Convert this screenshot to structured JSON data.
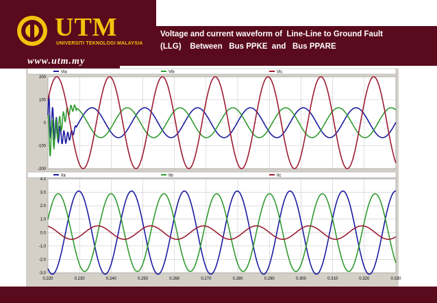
{
  "header": {
    "brand": "UTM",
    "brand_subtitle": "UNIVERSITI TEKNOLOGI MALAYSIA",
    "url": "www.utm.my",
    "title_line1": "Voltage and current waveform of  Line-Line to Ground Fault",
    "title_line2": "(LLG)    Between   Bus PPKE  and   Bus PPARE"
  },
  "colors": {
    "maroon": "#5a0a1d",
    "gold": "#f2c30d",
    "phase_a": "#1a1aa0",
    "phase_b": "#2f9a2f",
    "phase_c": "#9b1b30"
  },
  "chart_data": [
    {
      "type": "line",
      "legend": [
        "Vla",
        "Vlb",
        "Vlc"
      ],
      "legend_position": "top",
      "grid": true,
      "ylim": [
        -200,
        200
      ],
      "yticks": [
        "200",
        "100",
        "0",
        "-100",
        "-200"
      ],
      "xlim": [
        0.22,
        0.33
      ],
      "series": [
        {
          "name": "Vla",
          "amplitude": 65,
          "period": 0.0167,
          "phase_deg": 150,
          "fault_disturbance": true
        },
        {
          "name": "Vlb",
          "amplitude": 65,
          "period": 0.0167,
          "phase_deg": 270,
          "fault_disturbance": true
        },
        {
          "name": "Vlc",
          "amplitude": 200,
          "period": 0.0167,
          "phase_deg": 30,
          "fault_disturbance": false
        }
      ]
    },
    {
      "type": "line",
      "legend": [
        "IIa",
        "IIb",
        "IIc"
      ],
      "legend_position": "top",
      "grid": true,
      "ylim": [
        -3.0,
        4.0
      ],
      "yticks": [
        "4.0",
        "3.0",
        "2.0",
        "1.0",
        "0.0",
        "-1.0",
        "-2.0",
        "-3.0"
      ],
      "xlim": [
        0.22,
        0.33
      ],
      "xticks": [
        "0.220",
        "0.230",
        "0.240",
        "0.250",
        "0.260",
        "0.270",
        "0.280",
        "0.290",
        "0.300",
        "0.310",
        "0.320",
        "0.330"
      ],
      "series": [
        {
          "name": "IIa",
          "amplitude": 3.1,
          "period": 0.0167,
          "phase_deg": 240
        },
        {
          "name": "IIb",
          "amplitude": 2.9,
          "period": 0.0167,
          "phase_deg": 20
        },
        {
          "name": "IIc",
          "amplitude": 0.5,
          "period": 0.0167,
          "phase_deg": 110
        }
      ]
    }
  ]
}
